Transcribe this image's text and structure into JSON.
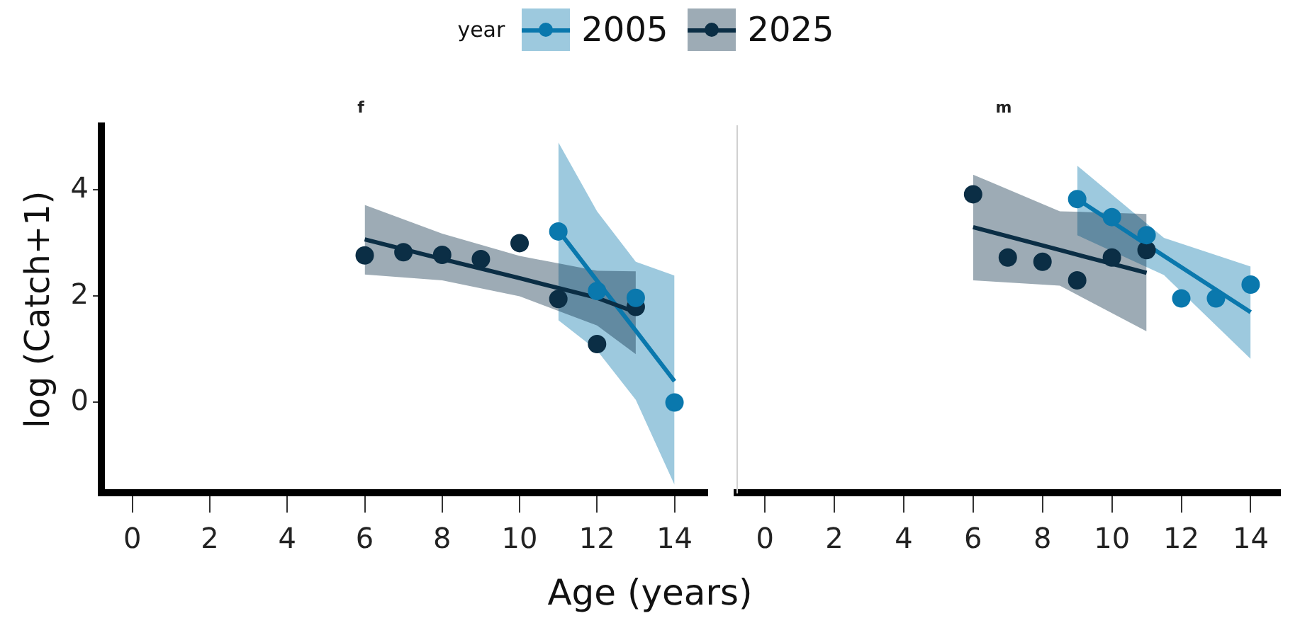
{
  "chart_data": [
    {
      "type": "scatter",
      "title": "f",
      "xlabel": "Age (years)",
      "ylabel": "log (Catch+1)",
      "legend": "top",
      "legend_title": "year",
      "grid": false,
      "xlim": [
        -0.8,
        14.85
      ],
      "xticks": [
        0,
        2,
        4,
        6,
        8,
        10,
        12,
        14
      ],
      "ylim": [
        -1.7,
        5.2
      ],
      "yticks": [
        0,
        2,
        4
      ],
      "series": [
        {
          "type": "line",
          "marker": "none",
          "color": "#0b2e45",
          "x": [
            6,
            8,
            10,
            12,
            13
          ],
          "values": [
            3.07,
            2.7,
            2.34,
            1.97,
            1.7
          ],
          "lower": [
            2.41,
            2.3,
            2.0,
            1.45,
            0.91
          ],
          "upper": [
            3.72,
            3.18,
            2.76,
            2.48,
            2.47
          ]
        },
        {
          "type": "line",
          "marker": "none",
          "color": "#0a78ad",
          "x": [
            11,
            12,
            13,
            14
          ],
          "values": [
            3.24,
            2.29,
            1.35,
            0.4
          ],
          "lower": [
            1.55,
            0.98,
            0.05,
            -1.55
          ],
          "upper": [
            4.9,
            3.6,
            2.65,
            2.39
          ]
        },
        {
          "type": "scatter",
          "marker": "circle",
          "name": "2005",
          "color": "#0a78ad",
          "x": [
            11,
            12,
            13,
            14
          ],
          "values": [
            3.22,
            2.1,
            1.97,
            0
          ]
        },
        {
          "type": "scatter",
          "marker": "circle",
          "name": "2025",
          "color": "#0b2e45",
          "x": [
            6,
            7,
            8,
            9,
            10,
            11,
            12,
            13
          ],
          "values": [
            2.77,
            2.83,
            2.78,
            2.7,
            3.0,
            1.95,
            1.1,
            1.8
          ]
        }
      ]
    },
    {
      "type": "scatter",
      "title": "m",
      "grid": false,
      "tick_labels": "x",
      "xlim": [
        -0.8,
        14.85
      ],
      "xticks": [
        0,
        2,
        4,
        6,
        8,
        10,
        12,
        14
      ],
      "ylim": [
        -1.7,
        5.2
      ],
      "yticks": [
        0,
        2,
        4
      ],
      "series": [
        {
          "type": "line",
          "marker": "none",
          "color": "#0b2e45",
          "x": [
            6,
            8.5,
            11
          ],
          "values": [
            3.3,
            2.87,
            2.44
          ],
          "lower": [
            2.3,
            2.2,
            1.34
          ],
          "upper": [
            4.29,
            3.6,
            3.55
          ]
        },
        {
          "type": "line",
          "marker": "none",
          "color": "#0a78ad",
          "x": [
            9,
            11.5,
            14
          ],
          "values": [
            3.83,
            2.76,
            1.7
          ],
          "lower": [
            3.15,
            2.4,
            0.82
          ],
          "upper": [
            4.46,
            3.1,
            2.56
          ]
        },
        {
          "type": "scatter",
          "marker": "circle",
          "name": "2005",
          "color": "#0a78ad",
          "x": [
            9,
            10,
            11,
            12,
            13,
            14
          ],
          "values": [
            3.83,
            3.49,
            3.15,
            1.96,
            1.96,
            2.22
          ]
        },
        {
          "type": "scatter",
          "marker": "circle",
          "name": "2025",
          "color": "#0b2e45",
          "x": [
            6,
            7,
            8,
            9,
            10,
            11
          ],
          "values": [
            3.92,
            2.73,
            2.65,
            2.3,
            2.73,
            2.87
          ]
        }
      ]
    }
  ]
}
